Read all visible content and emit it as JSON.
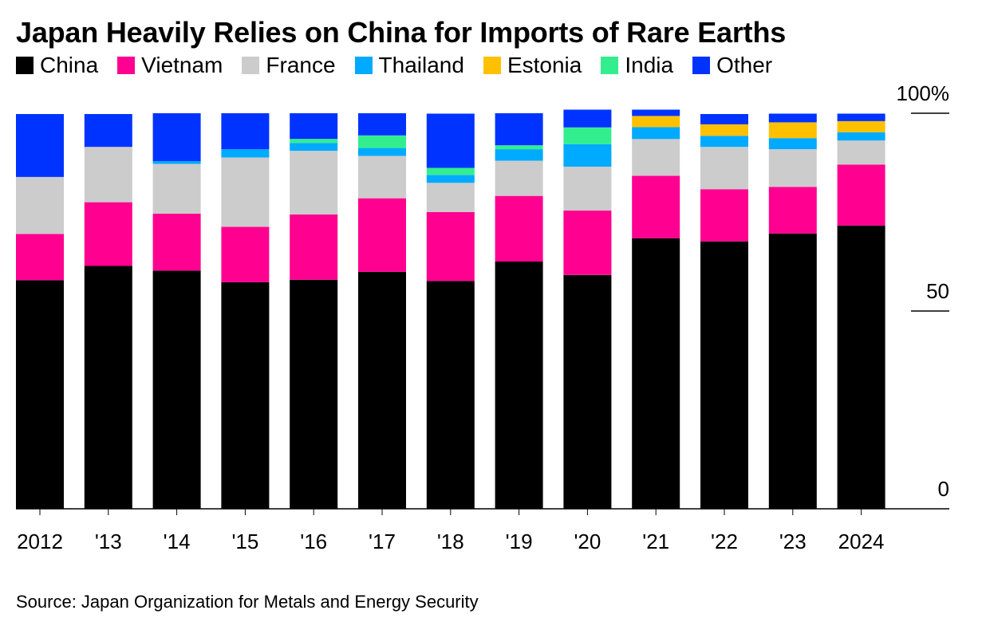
{
  "title": "Japan Heavily Relies on China for Imports of Rare Earths",
  "source": "Source: Japan Organization for Metals and Energy Security",
  "chart_data": {
    "type": "bar",
    "stacked": true,
    "title": "Japan Heavily Relies on China for Imports of Rare Earths",
    "xlabel": "",
    "ylabel": "",
    "ylim": [
      0,
      100
    ],
    "y_ticks": [
      0,
      50,
      100
    ],
    "y_tick_labels": [
      "0",
      "50",
      "100%"
    ],
    "legend_position": "top-left",
    "categories": [
      "2012",
      "'13",
      "'14",
      "'15",
      "'16",
      "'17",
      "'18",
      "'19",
      "'20",
      "'21",
      "'22",
      "'23",
      "2024"
    ],
    "series": [
      {
        "name": "China",
        "color": "#000000",
        "values": [
          57.8,
          61.4,
          60.2,
          57.3,
          57.9,
          59.9,
          57.6,
          62.5,
          59.1,
          68.4,
          67.6,
          69.6,
          71.6
        ]
      },
      {
        "name": "Vietnam",
        "color": "#ff0090",
        "values": [
          11.7,
          16.1,
          14.4,
          14.0,
          16.5,
          18.6,
          17.4,
          16.6,
          16.3,
          15.8,
          13.2,
          11.8,
          15.4
        ]
      },
      {
        "name": "France",
        "color": "#cccccc",
        "values": [
          14.4,
          14.0,
          12.6,
          17.5,
          16.1,
          10.7,
          7.4,
          8.9,
          11.1,
          9.3,
          10.7,
          9.5,
          6.1
        ]
      },
      {
        "name": "Thailand",
        "color": "#00aaff",
        "values": [
          0,
          0,
          0.7,
          2.1,
          2.0,
          2.0,
          2.0,
          2.9,
          5.7,
          3.0,
          2.8,
          2.8,
          2.1
        ]
      },
      {
        "name": "Estonia",
        "color": "#ffc000",
        "values": [
          0,
          0,
          0,
          0,
          0,
          0,
          0,
          0,
          0,
          2.8,
          2.9,
          4.0,
          2.8
        ]
      },
      {
        "name": "India",
        "color": "#33ee8f",
        "values": [
          0,
          0,
          0,
          0,
          1.0,
          3.2,
          1.8,
          1.0,
          4.2,
          0,
          0,
          0,
          0
        ]
      },
      {
        "name": "Other",
        "color": "#0033ff",
        "values": [
          15.9,
          8.3,
          12.1,
          9.1,
          6.5,
          5.6,
          13.7,
          8.1,
          4.5,
          1.6,
          2.6,
          2.2,
          1.9
        ]
      }
    ]
  }
}
